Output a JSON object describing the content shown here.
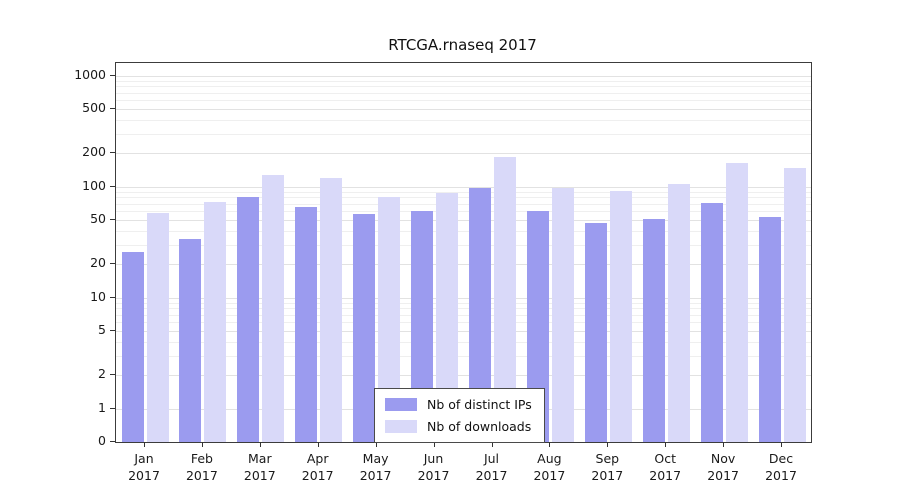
{
  "chart_data": {
    "type": "bar",
    "title": "RTCGA.rnaseq 2017",
    "categories": [
      "Jan",
      "Feb",
      "Mar",
      "Apr",
      "May",
      "Jun",
      "Jul",
      "Aug",
      "Sep",
      "Oct",
      "Nov",
      "Dec"
    ],
    "year_label": "2017",
    "series": [
      {
        "name": "Nb of distinct IPs",
        "color": "#9b9bef",
        "values": [
          26,
          34,
          80,
          66,
          57,
          61,
          97,
          61,
          47,
          51,
          71,
          53
        ]
      },
      {
        "name": "Nb of downloads",
        "color": "#d9d9f9",
        "values": [
          58,
          73,
          127,
          120,
          80,
          87,
          185,
          98,
          92,
          106,
          162,
          148
        ]
      }
    ],
    "yscale": "log",
    "y_ticks": [
      0,
      1,
      2,
      5,
      10,
      20,
      50,
      100,
      200,
      500,
      1000
    ],
    "ylim": [
      0,
      1300
    ],
    "grid": "horizontal-minor-log",
    "legend_position": "bottom-center"
  }
}
